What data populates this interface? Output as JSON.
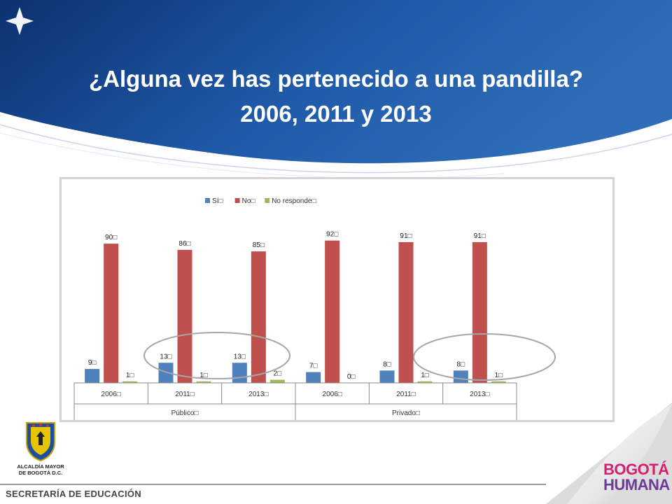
{
  "slide": {
    "title_line1": "¿Alguna vez has pertenecido a una pandilla?",
    "title_line2": "2006, 2011 y 2013",
    "colors": {
      "header_blue": "#1f5aa8",
      "header_dark": "#0d3170"
    }
  },
  "chart_data": {
    "type": "bar",
    "title": "",
    "legend": [
      "Sí□",
      "No□",
      "No responde□"
    ],
    "legend_position": "top",
    "colors": [
      "#4f81bd",
      "#c0504d",
      "#9bbb59"
    ],
    "groups": [
      {
        "label": "Público□",
        "categories": [
          "2006□",
          "2011□",
          "2013□"
        ]
      },
      {
        "label": "Privado□",
        "categories": [
          "2006□",
          "2011□",
          "2013□"
        ]
      }
    ],
    "categories": [
      "2006□",
      "2011□",
      "2013□",
      "2006□",
      "2011□",
      "2013□"
    ],
    "series": [
      {
        "name": "Sí□",
        "values": [
          9,
          13,
          13,
          7,
          8,
          8
        ],
        "labels": [
          "9□",
          "13□",
          "13□",
          "7□",
          "8□",
          "8□"
        ]
      },
      {
        "name": "No□",
        "values": [
          90,
          86,
          85,
          92,
          91,
          91
        ],
        "labels": [
          "90□",
          "86□",
          "85□",
          "92□",
          "91□",
          "91□"
        ]
      },
      {
        "name": "No responde□",
        "values": [
          1,
          1,
          2,
          0,
          1,
          1
        ],
        "labels": [
          "1□",
          "1□",
          "2□",
          "0□",
          "1□",
          "1□"
        ]
      }
    ],
    "ylim": [
      0,
      100
    ],
    "grid": false,
    "annotations": [
      "ellipse around 2011-2013 Público",
      "ellipse around 2011-2013 Privado"
    ]
  },
  "footer": {
    "alcaldia_line1": "ALCALDÍA MAYOR",
    "alcaldia_line2": "DE BOGOTÁ D.C.",
    "secretaria": "SECRETARÍA DE EDUCACIÓN",
    "bogota_line1": "BOGOTÁ",
    "bogota_line2": "HUMANA"
  }
}
